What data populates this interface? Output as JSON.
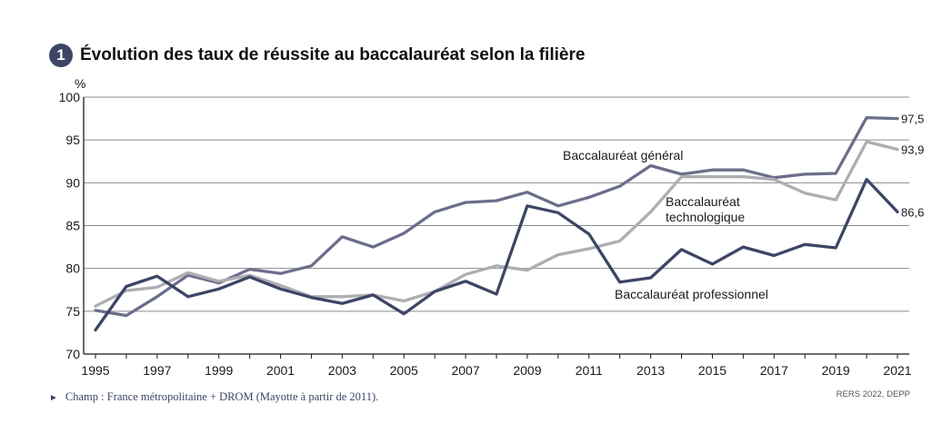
{
  "header": {
    "badge": "1",
    "title": "Évolution des taux de réussite au baccalauréat selon la filière"
  },
  "footnote": {
    "arrow": "►",
    "text": "Champ : France métropolitaine + DROM (Mayotte à partir de 2011)."
  },
  "source": "RERS 2022, DEPP",
  "chart_data": {
    "type": "line",
    "title": "Évolution des taux de réussite au baccalauréat selon la filière",
    "ylabel": "%",
    "xlabel": "",
    "ylim": [
      70,
      100
    ],
    "yticks": [
      70,
      75,
      80,
      85,
      90,
      95,
      100
    ],
    "xlim": [
      1995,
      2021
    ],
    "xticks": [
      1995,
      1997,
      1999,
      2001,
      2003,
      2005,
      2007,
      2009,
      2011,
      2013,
      2015,
      2017,
      2019,
      2021
    ],
    "grid": "horizontal",
    "x": [
      1995,
      1996,
      1997,
      1998,
      1999,
      2000,
      2001,
      2002,
      2003,
      2004,
      2005,
      2006,
      2007,
      2008,
      2009,
      2010,
      2011,
      2012,
      2013,
      2014,
      2015,
      2016,
      2017,
      2018,
      2019,
      2020,
      2021
    ],
    "series": [
      {
        "name": "Baccalauréat général",
        "color": "#6b6e8a",
        "end_label": "97,5",
        "values": [
          75.1,
          74.5,
          76.7,
          79.2,
          78.3,
          79.9,
          79.4,
          80.3,
          83.7,
          82.5,
          84.1,
          86.6,
          87.7,
          87.9,
          88.9,
          87.3,
          88.3,
          89.6,
          92.0,
          91.0,
          91.5,
          91.5,
          90.6,
          91.0,
          91.1,
          97.6,
          97.5
        ]
      },
      {
        "name": "Baccalauréat technologique",
        "color": "#aeadb3",
        "end_label": "93,9",
        "values": [
          75.6,
          77.4,
          77.8,
          79.5,
          78.5,
          79.2,
          78.0,
          76.7,
          76.7,
          76.9,
          76.2,
          77.3,
          79.3,
          80.3,
          79.8,
          81.6,
          82.3,
          83.2,
          86.6,
          90.7,
          90.7,
          90.7,
          90.4,
          88.8,
          88.0,
          94.8,
          93.9
        ]
      },
      {
        "name": "Baccalauréat professionnel",
        "color": "#3d4566",
        "end_label": "86,6",
        "values": [
          72.8,
          77.9,
          79.1,
          76.7,
          77.6,
          79.0,
          77.6,
          76.6,
          75.9,
          76.9,
          74.7,
          77.3,
          78.5,
          77.0,
          87.3,
          86.5,
          84.0,
          78.4,
          78.9,
          82.2,
          80.5,
          82.5,
          81.5,
          82.8,
          82.4,
          90.4,
          86.6
        ]
      }
    ],
    "series_labels": [
      "Baccalauréat général",
      "Baccalauréat",
      "technologique",
      "Baccalauréat professionnel"
    ]
  }
}
